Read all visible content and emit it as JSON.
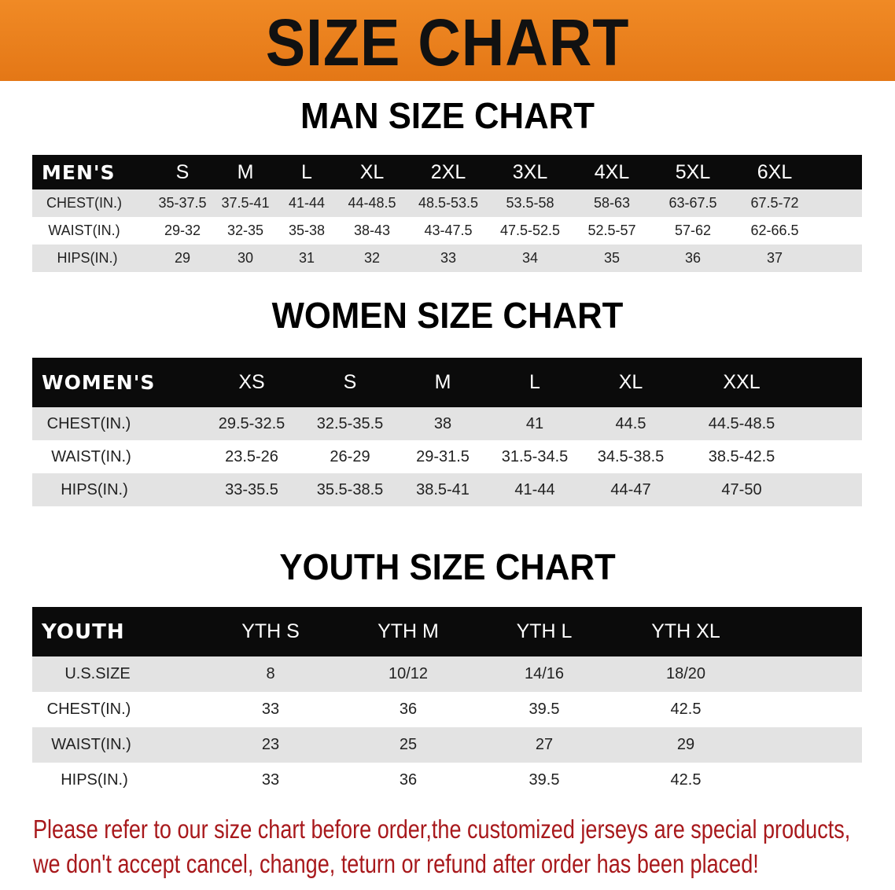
{
  "banner": {
    "title": "SIZE CHART",
    "color": "#e87d1e"
  },
  "men": {
    "heading": "MAN SIZE CHART",
    "header": [
      "MEN'S",
      "S",
      "M",
      "L",
      "XL",
      "2XL",
      "3XL",
      "4XL",
      "5XL",
      "6XL"
    ],
    "rows": [
      [
        "CHEST(IN.)",
        "35-37.5",
        "37.5-41",
        "41-44",
        "44-48.5",
        "48.5-53.5",
        "53.5-58",
        "58-63",
        "63-67.5",
        "67.5-72"
      ],
      [
        "WAIST(IN.)",
        "29-32",
        "32-35",
        "35-38",
        "38-43",
        "43-47.5",
        "47.5-52.5",
        "52.5-57",
        "57-62",
        "62-66.5"
      ],
      [
        "HIPS(IN.)",
        "29",
        "30",
        "31",
        "32",
        "33",
        "34",
        "35",
        "36",
        "37"
      ]
    ]
  },
  "women": {
    "heading": "WOMEN SIZE CHART",
    "header": [
      "WOMEN'S",
      "XS",
      "S",
      "M",
      "L",
      "XL",
      "XXL"
    ],
    "rows": [
      [
        "CHEST(IN.)",
        "29.5-32.5",
        "32.5-35.5",
        "38",
        "41",
        "44.5",
        "44.5-48.5"
      ],
      [
        "WAIST(IN.)",
        "23.5-26",
        "26-29",
        "29-31.5",
        "31.5-34.5",
        "34.5-38.5",
        "38.5-42.5"
      ],
      [
        "HIPS(IN.)",
        "33-35.5",
        "35.5-38.5",
        "38.5-41",
        "41-44",
        "44-47",
        "47-50"
      ]
    ]
  },
  "youth": {
    "heading": "YOUTH SIZE CHART",
    "header": [
      "YOUTH",
      "YTH S",
      "YTH M",
      "YTH L",
      "YTH XL"
    ],
    "rows": [
      [
        "U.S.SIZE",
        "8",
        "10/12",
        "14/16",
        "18/20"
      ],
      [
        "CHEST(IN.)",
        "33",
        "36",
        "39.5",
        "42.5"
      ],
      [
        "WAIST(IN.)",
        "23",
        "25",
        "27",
        "29"
      ],
      [
        "HIPS(IN.)",
        "33",
        "36",
        "39.5",
        "42.5"
      ]
    ]
  },
  "note": {
    "line1": "Please refer to our size chart before order,the customized jerseys are special products,",
    "line2": "we don't accept cancel, change, teturn or refund after order has been placed!",
    "color": "#a8191c"
  }
}
